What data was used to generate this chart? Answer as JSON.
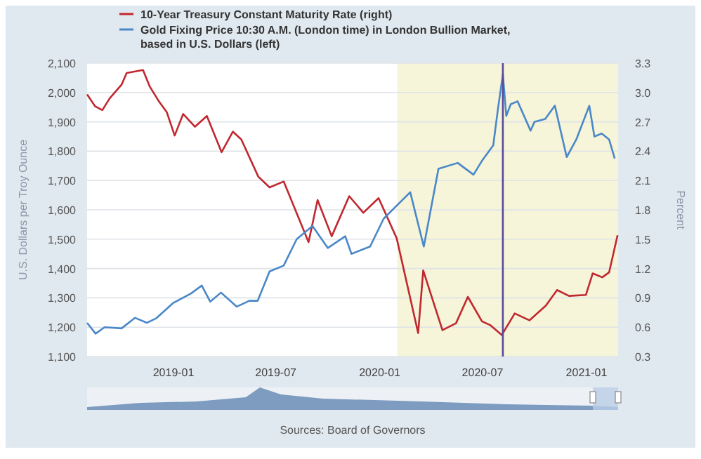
{
  "chart_data": {
    "type": "line",
    "ylabel": "U.S. Dollars per Troy Ounce",
    "y2label": "Percent",
    "xlim": [
      "2018-08-01",
      "2021-02-26"
    ],
    "xticks": [
      {
        "value": "2019-01-01",
        "label": "2019-01"
      },
      {
        "value": "2019-07-01",
        "label": "2019-07"
      },
      {
        "value": "2020-01-01",
        "label": "2020-01"
      },
      {
        "value": "2020-07-01",
        "label": "2020-07"
      },
      {
        "value": "2021-01-01",
        "label": "2021-01"
      }
    ],
    "ylim": [
      1100,
      2100
    ],
    "yticks": [
      {
        "value": 1100,
        "label": "1,100"
      },
      {
        "value": 1200,
        "label": "1,200"
      },
      {
        "value": 1300,
        "label": "1,300"
      },
      {
        "value": 1400,
        "label": "1,400"
      },
      {
        "value": 1500,
        "label": "1,500"
      },
      {
        "value": 1600,
        "label": "1,600"
      },
      {
        "value": 1700,
        "label": "1,700"
      },
      {
        "value": 1800,
        "label": "1,800"
      },
      {
        "value": 1900,
        "label": "1,900"
      },
      {
        "value": 2000,
        "label": "2,000"
      },
      {
        "value": 2100,
        "label": "2,100"
      }
    ],
    "y2lim": [
      0.3,
      3.3
    ],
    "y2ticks": [
      0.3,
      0.6,
      0.9,
      1.2,
      1.5,
      1.8,
      2.1,
      2.4,
      2.7,
      {
        "value": 3,
        "label": "3.0"
      },
      3.3
    ],
    "grid": "y",
    "legend": "top left",
    "bands": [
      {
        "axis": "x",
        "from": "2020-02-01",
        "to": "2021-02-26",
        "color": "#f6f4d9"
      }
    ],
    "ref_lines": [
      {
        "axis": "x",
        "value": "2020-08-06",
        "color": "#5a4a9c"
      }
    ],
    "annotations": [
      "Sources: Board of Governors"
    ],
    "series": [
      {
        "name": "10-Year Treasury Constant Maturity Rate (right)",
        "color": "#c0282f",
        "axis": "y2",
        "x": [
          "2018-08-01",
          "2018-08-15",
          "2018-08-28",
          "2018-09-10",
          "2018-10-01",
          "2018-10-10",
          "2018-11-08",
          "2018-11-20",
          "2018-12-06",
          "2018-12-20",
          "2019-01-03",
          "2019-01-18",
          "2019-02-08",
          "2019-03-01",
          "2019-03-27",
          "2019-04-16",
          "2019-05-01",
          "2019-05-31",
          "2019-06-20",
          "2019-07-15",
          "2019-08-28",
          "2019-09-13",
          "2019-10-08",
          "2019-11-08",
          "2019-12-03",
          "2019-12-30",
          "2020-01-31",
          "2020-03-09",
          "2020-03-18",
          "2020-04-21",
          "2020-05-15",
          "2020-06-05",
          "2020-06-30",
          "2020-07-15",
          "2020-08-04",
          "2020-08-27",
          "2020-09-22",
          "2020-10-21",
          "2020-11-10",
          "2020-12-01",
          "2020-12-31",
          "2021-01-12",
          "2021-01-29",
          "2021-02-10",
          "2021-02-25"
        ],
        "values": [
          2.98,
          2.86,
          2.82,
          2.94,
          3.08,
          3.2,
          3.23,
          3.06,
          2.91,
          2.8,
          2.56,
          2.78,
          2.65,
          2.76,
          2.39,
          2.6,
          2.52,
          2.14,
          2.03,
          2.09,
          1.47,
          1.9,
          1.53,
          1.94,
          1.77,
          1.92,
          1.51,
          0.54,
          1.18,
          0.57,
          0.64,
          0.91,
          0.66,
          0.62,
          0.52,
          0.74,
          0.67,
          0.82,
          0.98,
          0.92,
          0.93,
          1.15,
          1.11,
          1.16,
          1.54
        ]
      },
      {
        "name": "Gold Fixing Price 10:30 A.M. (London time) in London Bullion Market, based in U.S. Dollars (left)",
        "color": "#4a88c8",
        "x": [
          "2018-08-01",
          "2018-08-16",
          "2018-09-01",
          "2018-10-01",
          "2018-10-25",
          "2018-11-15",
          "2018-12-01",
          "2018-12-31",
          "2019-02-01",
          "2019-02-20",
          "2019-03-07",
          "2019-03-26",
          "2019-04-23",
          "2019-05-15",
          "2019-05-30",
          "2019-06-20",
          "2019-07-15",
          "2019-08-07",
          "2019-09-04",
          "2019-10-01",
          "2019-11-01",
          "2019-11-12",
          "2019-12-15",
          "2020-01-08",
          "2020-02-24",
          "2020-03-19",
          "2020-04-14",
          "2020-05-18",
          "2020-06-15",
          "2020-07-01",
          "2020-07-20",
          "2020-07-28",
          "2020-08-06",
          "2020-08-12",
          "2020-08-20",
          "2020-09-01",
          "2020-09-24",
          "2020-10-01",
          "2020-10-20",
          "2020-11-06",
          "2020-11-27",
          "2020-12-14",
          "2021-01-06",
          "2021-01-15",
          "2021-01-28",
          "2021-02-10",
          "2021-02-20"
        ],
        "values": [
          1215,
          1178,
          1200,
          1196,
          1232,
          1215,
          1230,
          1282,
          1315,
          1342,
          1287,
          1318,
          1270,
          1290,
          1290,
          1390,
          1410,
          1500,
          1545,
          1470,
          1510,
          1450,
          1475,
          1570,
          1660,
          1475,
          1740,
          1760,
          1720,
          1770,
          1820,
          1940,
          2062,
          1920,
          1960,
          1970,
          1870,
          1900,
          1910,
          1955,
          1780,
          1840,
          1955,
          1850,
          1860,
          1840,
          1775
        ]
      }
    ]
  }
}
